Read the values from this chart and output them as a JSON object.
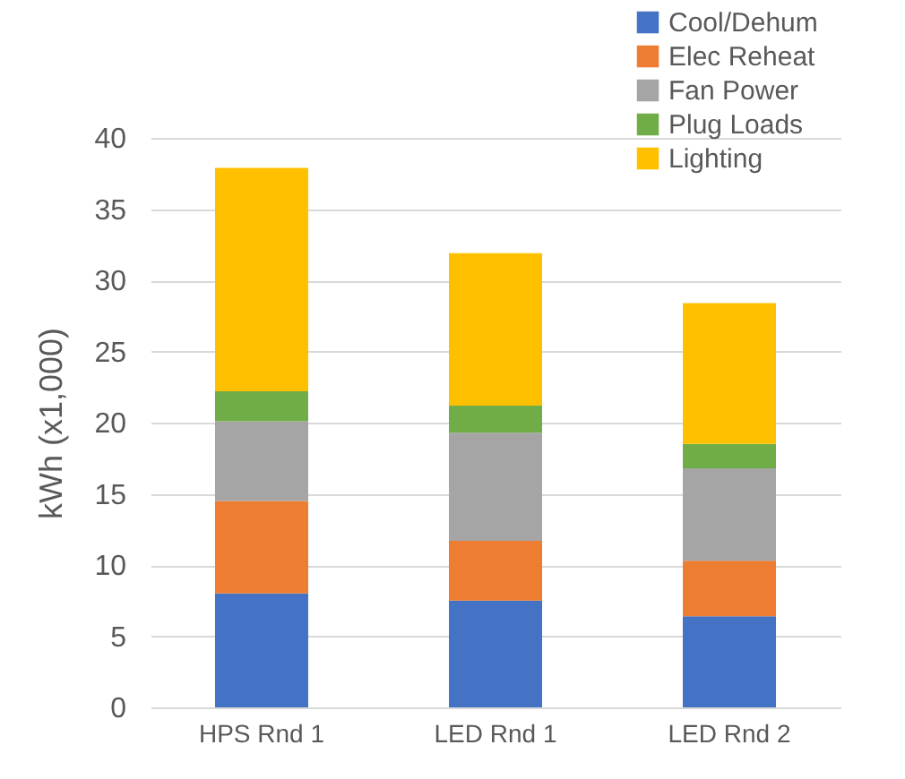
{
  "chart_data": {
    "type": "bar",
    "stacked": true,
    "ylabel": "kWh (x1,000)",
    "categories": [
      "HPS Rnd 1",
      "LED Rnd 1",
      "LED Rnd 2"
    ],
    "series": [
      {
        "name": "Cool/Dehum",
        "color": "#4472c4",
        "values": [
          8.0,
          7.5,
          6.4
        ]
      },
      {
        "name": "Elec Reheat",
        "color": "#ed7d31",
        "values": [
          6.5,
          4.2,
          3.9
        ]
      },
      {
        "name": "Fan Power",
        "color": "#a5a5a5",
        "values": [
          5.6,
          7.6,
          6.5
        ]
      },
      {
        "name": "Plug Loads",
        "color": "#70ad47",
        "values": [
          2.1,
          1.9,
          1.7
        ]
      },
      {
        "name": "Lighting",
        "color": "#ffc000",
        "values": [
          15.7,
          10.7,
          9.9
        ]
      }
    ],
    "ylim": [
      0,
      40
    ],
    "yticks": [
      0,
      5,
      10,
      15,
      20,
      25,
      30,
      35,
      40
    ],
    "grid": "y",
    "legend": "top right"
  }
}
